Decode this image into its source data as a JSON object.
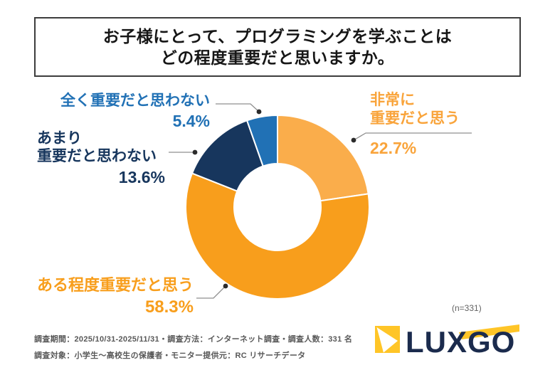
{
  "title": {
    "line1": "お子様にとって、プログラミングを学ぶことは",
    "line2": "どの程度重要だと思いますか。"
  },
  "chart_data": {
    "type": "pie",
    "donut": true,
    "title": "お子様にとって、プログラミングを学ぶことはどの程度重要だと思いますか。",
    "start_angle_deg": 0,
    "direction": "clockwise",
    "sample_size": 331,
    "segments": [
      {
        "label": "非常に重要だと思う",
        "value": 22.7,
        "color": "#faad4b"
      },
      {
        "label": "ある程度重要だと思う",
        "value": 58.3,
        "color": "#f89e1c"
      },
      {
        "label": "あまり重要だと思わない",
        "value": 13.6,
        "color": "#17365d"
      },
      {
        "label": "全く重要だと思わない",
        "value": 5.4,
        "color": "#2171b5"
      }
    ]
  },
  "labels": {
    "very": {
      "line1": "非常に",
      "line2": "重要だと思う",
      "pct": "22.7%",
      "color": "#f9a43b"
    },
    "somewhat": {
      "line1": "ある程度重要だと思う",
      "pct": "58.3%",
      "color": "#f89e1c"
    },
    "not_much": {
      "line1": "あまり",
      "line2": "重要だと思わない",
      "pct": "13.6%",
      "color": "#17365d"
    },
    "not_at_all": {
      "line1": "全く重要だと思わない",
      "pct": "5.4%",
      "color": "#2171b5"
    }
  },
  "n_note": "(n=331)",
  "footer": {
    "note1": "調査期間：2025/10/31-2025/11/31・調査方法：インターネット調査・調査人数：331 名",
    "note2": "調査対象：小学生～高校生の保護者・モニター提供元：RC リサーチデータ",
    "logo_text": "LUXGO",
    "logo_navy": "#1b2b4d",
    "logo_gold": "#ffc527"
  }
}
